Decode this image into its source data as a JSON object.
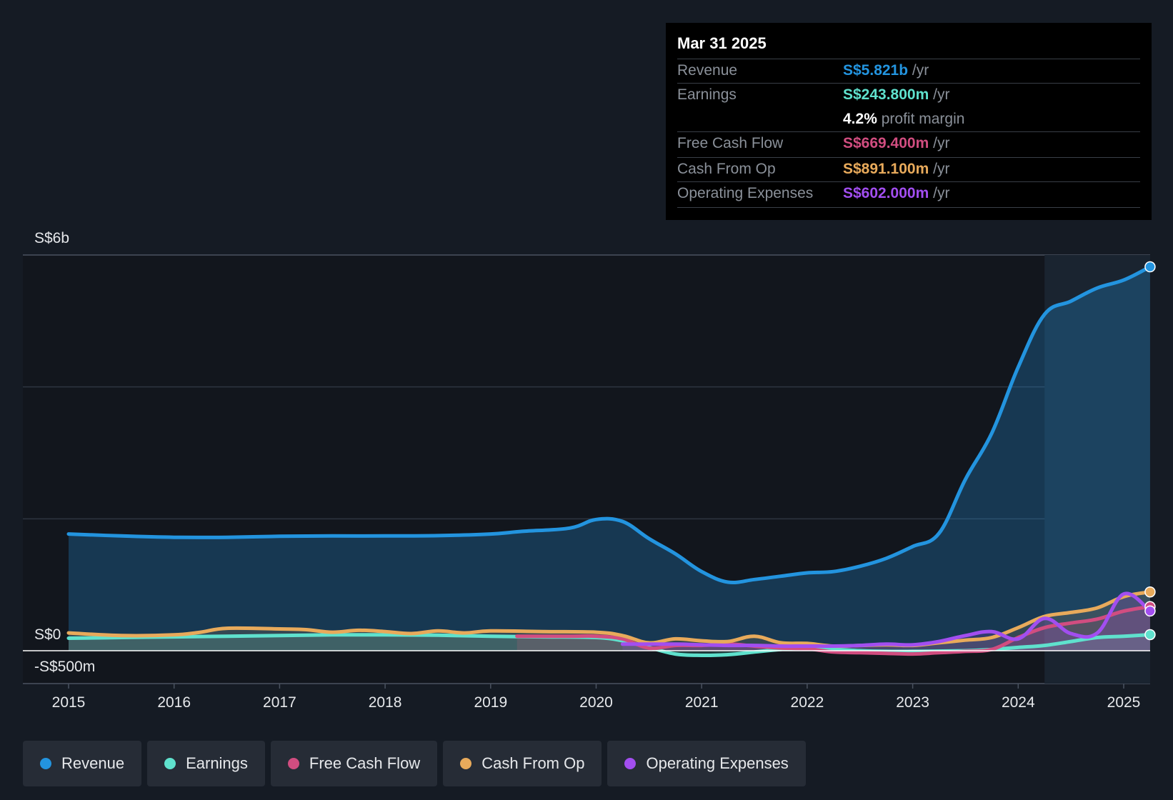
{
  "tooltip": {
    "date": "Mar 31 2025",
    "rows": [
      {
        "label": "Revenue",
        "value": "S$5.821b",
        "unit": "/yr",
        "color": "#2394df"
      },
      {
        "label": "Earnings",
        "value": "S$243.800m",
        "unit": "/yr",
        "color": "#5fe1cd"
      },
      {
        "label": "",
        "value": "4.2%",
        "unit": "profit margin",
        "color": "#ffffff"
      },
      {
        "label": "Free Cash Flow",
        "value": "S$669.400m",
        "unit": "/yr",
        "color": "#d14d80"
      },
      {
        "label": "Cash From Op",
        "value": "S$891.100m",
        "unit": "/yr",
        "color": "#e8aa5b"
      },
      {
        "label": "Operating Expenses",
        "value": "S$602.000m",
        "unit": "/yr",
        "color": "#a24ef0"
      }
    ]
  },
  "legend": [
    {
      "label": "Revenue",
      "color": "#2394df"
    },
    {
      "label": "Earnings",
      "color": "#5fe1cd"
    },
    {
      "label": "Free Cash Flow",
      "color": "#d14d80"
    },
    {
      "label": "Cash From Op",
      "color": "#e8aa5b"
    },
    {
      "label": "Operating Expenses",
      "color": "#a24ef0"
    }
  ],
  "chart_data": {
    "type": "line",
    "title": "",
    "ylabel_top": "S$6b",
    "ylabel_zero": "S$0",
    "ylabel_bottom": "-S$500m",
    "ylim": [
      -500,
      6000
    ],
    "unit": "S$m",
    "x_ticks": [
      "2015",
      "2016",
      "2017",
      "2018",
      "2019",
      "2020",
      "2021",
      "2022",
      "2023",
      "2024",
      "2025"
    ],
    "highlight_from": 2024.25,
    "series": [
      {
        "name": "Revenue",
        "color": "#2394df",
        "points": [
          [
            2015.0,
            1770
          ],
          [
            2015.5,
            1740
          ],
          [
            2016.0,
            1720
          ],
          [
            2016.5,
            1720
          ],
          [
            2017.0,
            1735
          ],
          [
            2017.5,
            1740
          ],
          [
            2018.0,
            1740
          ],
          [
            2018.5,
            1745
          ],
          [
            2019.0,
            1770
          ],
          [
            2019.3,
            1810
          ],
          [
            2019.75,
            1860
          ],
          [
            2020.0,
            1990
          ],
          [
            2020.25,
            1960
          ],
          [
            2020.5,
            1700
          ],
          [
            2020.75,
            1470
          ],
          [
            2021.0,
            1200
          ],
          [
            2021.25,
            1040
          ],
          [
            2021.5,
            1080
          ],
          [
            2021.75,
            1130
          ],
          [
            2022.0,
            1180
          ],
          [
            2022.25,
            1200
          ],
          [
            2022.5,
            1280
          ],
          [
            2022.75,
            1400
          ],
          [
            2023.0,
            1580
          ],
          [
            2023.25,
            1780
          ],
          [
            2023.5,
            2600
          ],
          [
            2023.75,
            3300
          ],
          [
            2024.0,
            4300
          ],
          [
            2024.25,
            5100
          ],
          [
            2024.5,
            5300
          ],
          [
            2024.75,
            5500
          ],
          [
            2025.0,
            5620
          ],
          [
            2025.25,
            5821
          ]
        ]
      },
      {
        "name": "Earnings",
        "color": "#5fe1cd",
        "points": [
          [
            2015.0,
            190
          ],
          [
            2015.5,
            200
          ],
          [
            2016.0,
            210
          ],
          [
            2016.5,
            220
          ],
          [
            2017.0,
            230
          ],
          [
            2017.5,
            240
          ],
          [
            2018.0,
            240
          ],
          [
            2018.5,
            235
          ],
          [
            2019.0,
            220
          ],
          [
            2019.5,
            210
          ],
          [
            2020.0,
            200
          ],
          [
            2020.25,
            150
          ],
          [
            2020.5,
            50
          ],
          [
            2020.75,
            -50
          ],
          [
            2021.0,
            -70
          ],
          [
            2021.25,
            -60
          ],
          [
            2021.5,
            -20
          ],
          [
            2021.75,
            20
          ],
          [
            2022.0,
            40
          ],
          [
            2022.5,
            0
          ],
          [
            2022.75,
            -10
          ],
          [
            2023.0,
            -10
          ],
          [
            2023.5,
            0
          ],
          [
            2023.75,
            20
          ],
          [
            2024.0,
            50
          ],
          [
            2024.25,
            80
          ],
          [
            2024.5,
            140
          ],
          [
            2024.75,
            200
          ],
          [
            2025.0,
            220
          ],
          [
            2025.25,
            244
          ]
        ]
      },
      {
        "name": "Free Cash Flow",
        "color": "#d14d80",
        "points": [
          [
            2019.25,
            220
          ],
          [
            2019.75,
            220
          ],
          [
            2020.0,
            220
          ],
          [
            2020.25,
            180
          ],
          [
            2020.5,
            40
          ],
          [
            2020.75,
            80
          ],
          [
            2021.0,
            80
          ],
          [
            2021.25,
            100
          ],
          [
            2021.5,
            70
          ],
          [
            2021.75,
            40
          ],
          [
            2022.0,
            30
          ],
          [
            2022.25,
            -20
          ],
          [
            2022.5,
            -30
          ],
          [
            2022.75,
            -40
          ],
          [
            2023.0,
            -50
          ],
          [
            2023.25,
            -30
          ],
          [
            2023.5,
            -10
          ],
          [
            2023.75,
            20
          ],
          [
            2024.0,
            200
          ],
          [
            2024.25,
            350
          ],
          [
            2024.5,
            420
          ],
          [
            2024.75,
            480
          ],
          [
            2025.0,
            600
          ],
          [
            2025.25,
            669
          ]
        ]
      },
      {
        "name": "Cash From Op",
        "color": "#e8aa5b",
        "points": [
          [
            2015.0,
            270
          ],
          [
            2015.5,
            230
          ],
          [
            2016.0,
            240
          ],
          [
            2016.25,
            280
          ],
          [
            2016.5,
            340
          ],
          [
            2017.0,
            330
          ],
          [
            2017.25,
            320
          ],
          [
            2017.5,
            280
          ],
          [
            2017.75,
            310
          ],
          [
            2018.0,
            290
          ],
          [
            2018.25,
            260
          ],
          [
            2018.5,
            300
          ],
          [
            2018.75,
            270
          ],
          [
            2019.0,
            300
          ],
          [
            2019.5,
            290
          ],
          [
            2020.0,
            280
          ],
          [
            2020.25,
            230
          ],
          [
            2020.5,
            120
          ],
          [
            2020.75,
            180
          ],
          [
            2021.0,
            150
          ],
          [
            2021.25,
            140
          ],
          [
            2021.5,
            220
          ],
          [
            2021.75,
            120
          ],
          [
            2022.0,
            110
          ],
          [
            2022.25,
            70
          ],
          [
            2022.5,
            80
          ],
          [
            2022.75,
            90
          ],
          [
            2023.0,
            80
          ],
          [
            2023.25,
            120
          ],
          [
            2023.5,
            160
          ],
          [
            2023.75,
            200
          ],
          [
            2024.0,
            350
          ],
          [
            2024.25,
            520
          ],
          [
            2024.5,
            580
          ],
          [
            2024.75,
            650
          ],
          [
            2025.0,
            820
          ],
          [
            2025.25,
            891
          ]
        ]
      },
      {
        "name": "Operating Expenses",
        "color": "#a24ef0",
        "points": [
          [
            2020.25,
            100
          ],
          [
            2020.75,
            100
          ],
          [
            2021.0,
            90
          ],
          [
            2021.25,
            80
          ],
          [
            2021.5,
            80
          ],
          [
            2021.75,
            70
          ],
          [
            2022.0,
            70
          ],
          [
            2022.25,
            70
          ],
          [
            2022.5,
            80
          ],
          [
            2022.75,
            100
          ],
          [
            2023.0,
            90
          ],
          [
            2023.25,
            140
          ],
          [
            2023.5,
            230
          ],
          [
            2023.75,
            290
          ],
          [
            2024.0,
            180
          ],
          [
            2024.25,
            490
          ],
          [
            2024.5,
            260
          ],
          [
            2024.75,
            270
          ],
          [
            2025.0,
            860
          ],
          [
            2025.25,
            602
          ]
        ]
      }
    ]
  }
}
